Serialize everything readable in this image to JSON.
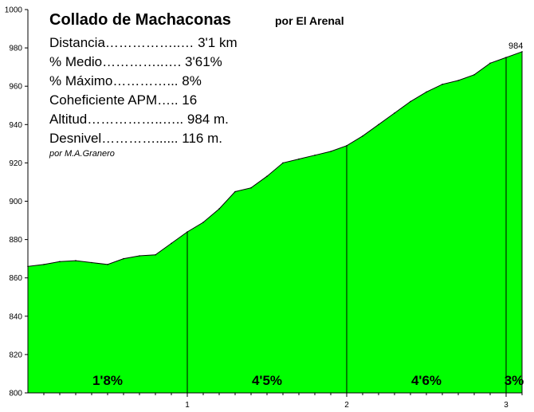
{
  "chart_data": {
    "type": "area",
    "title": "Collado de Machaconas",
    "subtitle": "por El Arenal",
    "author": "por M.A.Granero",
    "stats": [
      "Distancia……………..… 3'1 km",
      "% Medio…………..…. 3'61%",
      "% Máximo…………...  8%",
      "Coheficiente APM…..  16",
      "Altitud……………..….. 984 m.",
      "Desnivel…………...... 116 m."
    ],
    "ylim": [
      800,
      1000
    ],
    "xlim": [
      0,
      3.1
    ],
    "y_ticks": [
      800,
      820,
      840,
      860,
      880,
      900,
      920,
      940,
      960,
      980,
      1000
    ],
    "x_ticks": [
      1,
      2,
      3
    ],
    "x": [
      0,
      0.1,
      0.2,
      0.3,
      0.4,
      0.5,
      0.6,
      0.7,
      0.8,
      0.9,
      1.0,
      1.1,
      1.2,
      1.3,
      1.4,
      1.5,
      1.6,
      1.7,
      1.8,
      1.9,
      2.0,
      2.1,
      2.2,
      2.3,
      2.4,
      2.5,
      2.6,
      2.7,
      2.8,
      2.9,
      3.0,
      3.1
    ],
    "y": [
      866,
      867,
      868.5,
      869,
      868,
      867,
      870,
      871.5,
      872,
      878,
      884,
      889,
      896,
      905,
      907,
      913,
      920,
      922,
      924,
      926,
      929,
      934,
      940,
      946,
      952,
      957,
      961,
      963,
      966,
      972,
      975,
      978
    ],
    "segments": [
      {
        "label": "1'8%",
        "start": 0,
        "end": 1
      },
      {
        "label": "4'5%",
        "start": 1,
        "end": 2
      },
      {
        "label": "4'6%",
        "start": 2,
        "end": 3
      },
      {
        "label": "3%",
        "start": 3,
        "end": 3.1
      }
    ],
    "peak_label": "984",
    "fill_color": "#00ff00",
    "grid": false
  }
}
